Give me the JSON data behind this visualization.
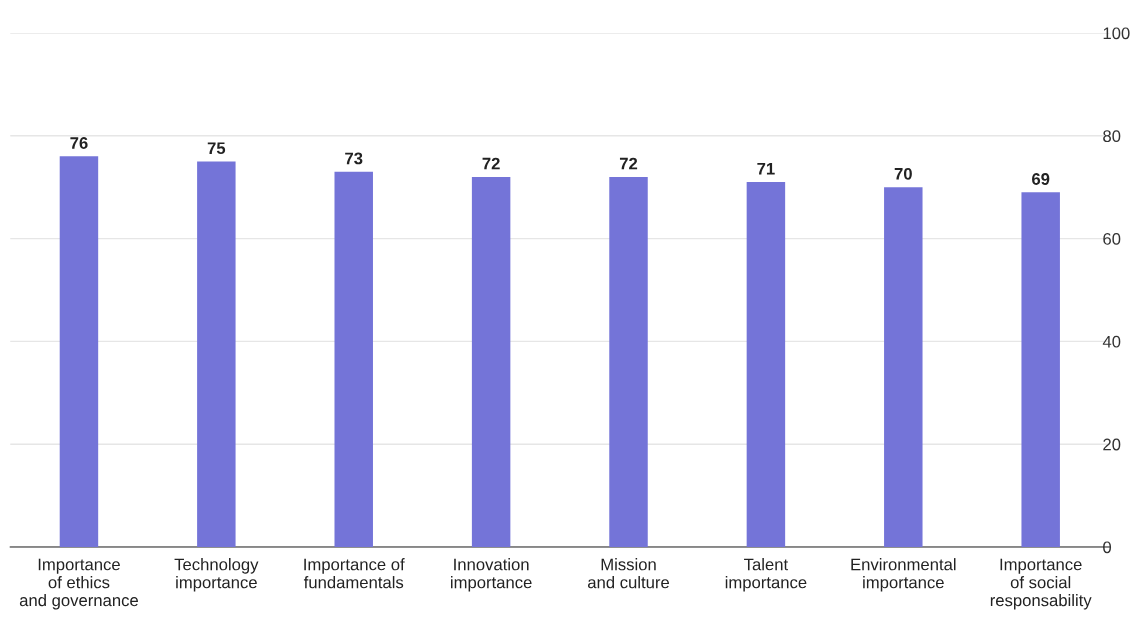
{
  "chart_data": {
    "type": "bar",
    "categories": [
      "Importance\nof ethics\nand governance",
      "Technology\nimportance",
      "Importance of\nfundamentals",
      "Innovation\nimportance",
      "Mission\nand culture",
      "Talent\nimportance",
      "Environmental\nimportance",
      "Importance\nof social\nresponsability"
    ],
    "values": [
      76,
      75,
      73,
      72,
      72,
      71,
      70,
      69
    ],
    "color": "#7474d8",
    "ylim": [
      0,
      100
    ],
    "yticks": [
      0,
      20,
      40,
      60,
      80,
      100
    ],
    "grid": "y",
    "data_labels": true
  }
}
